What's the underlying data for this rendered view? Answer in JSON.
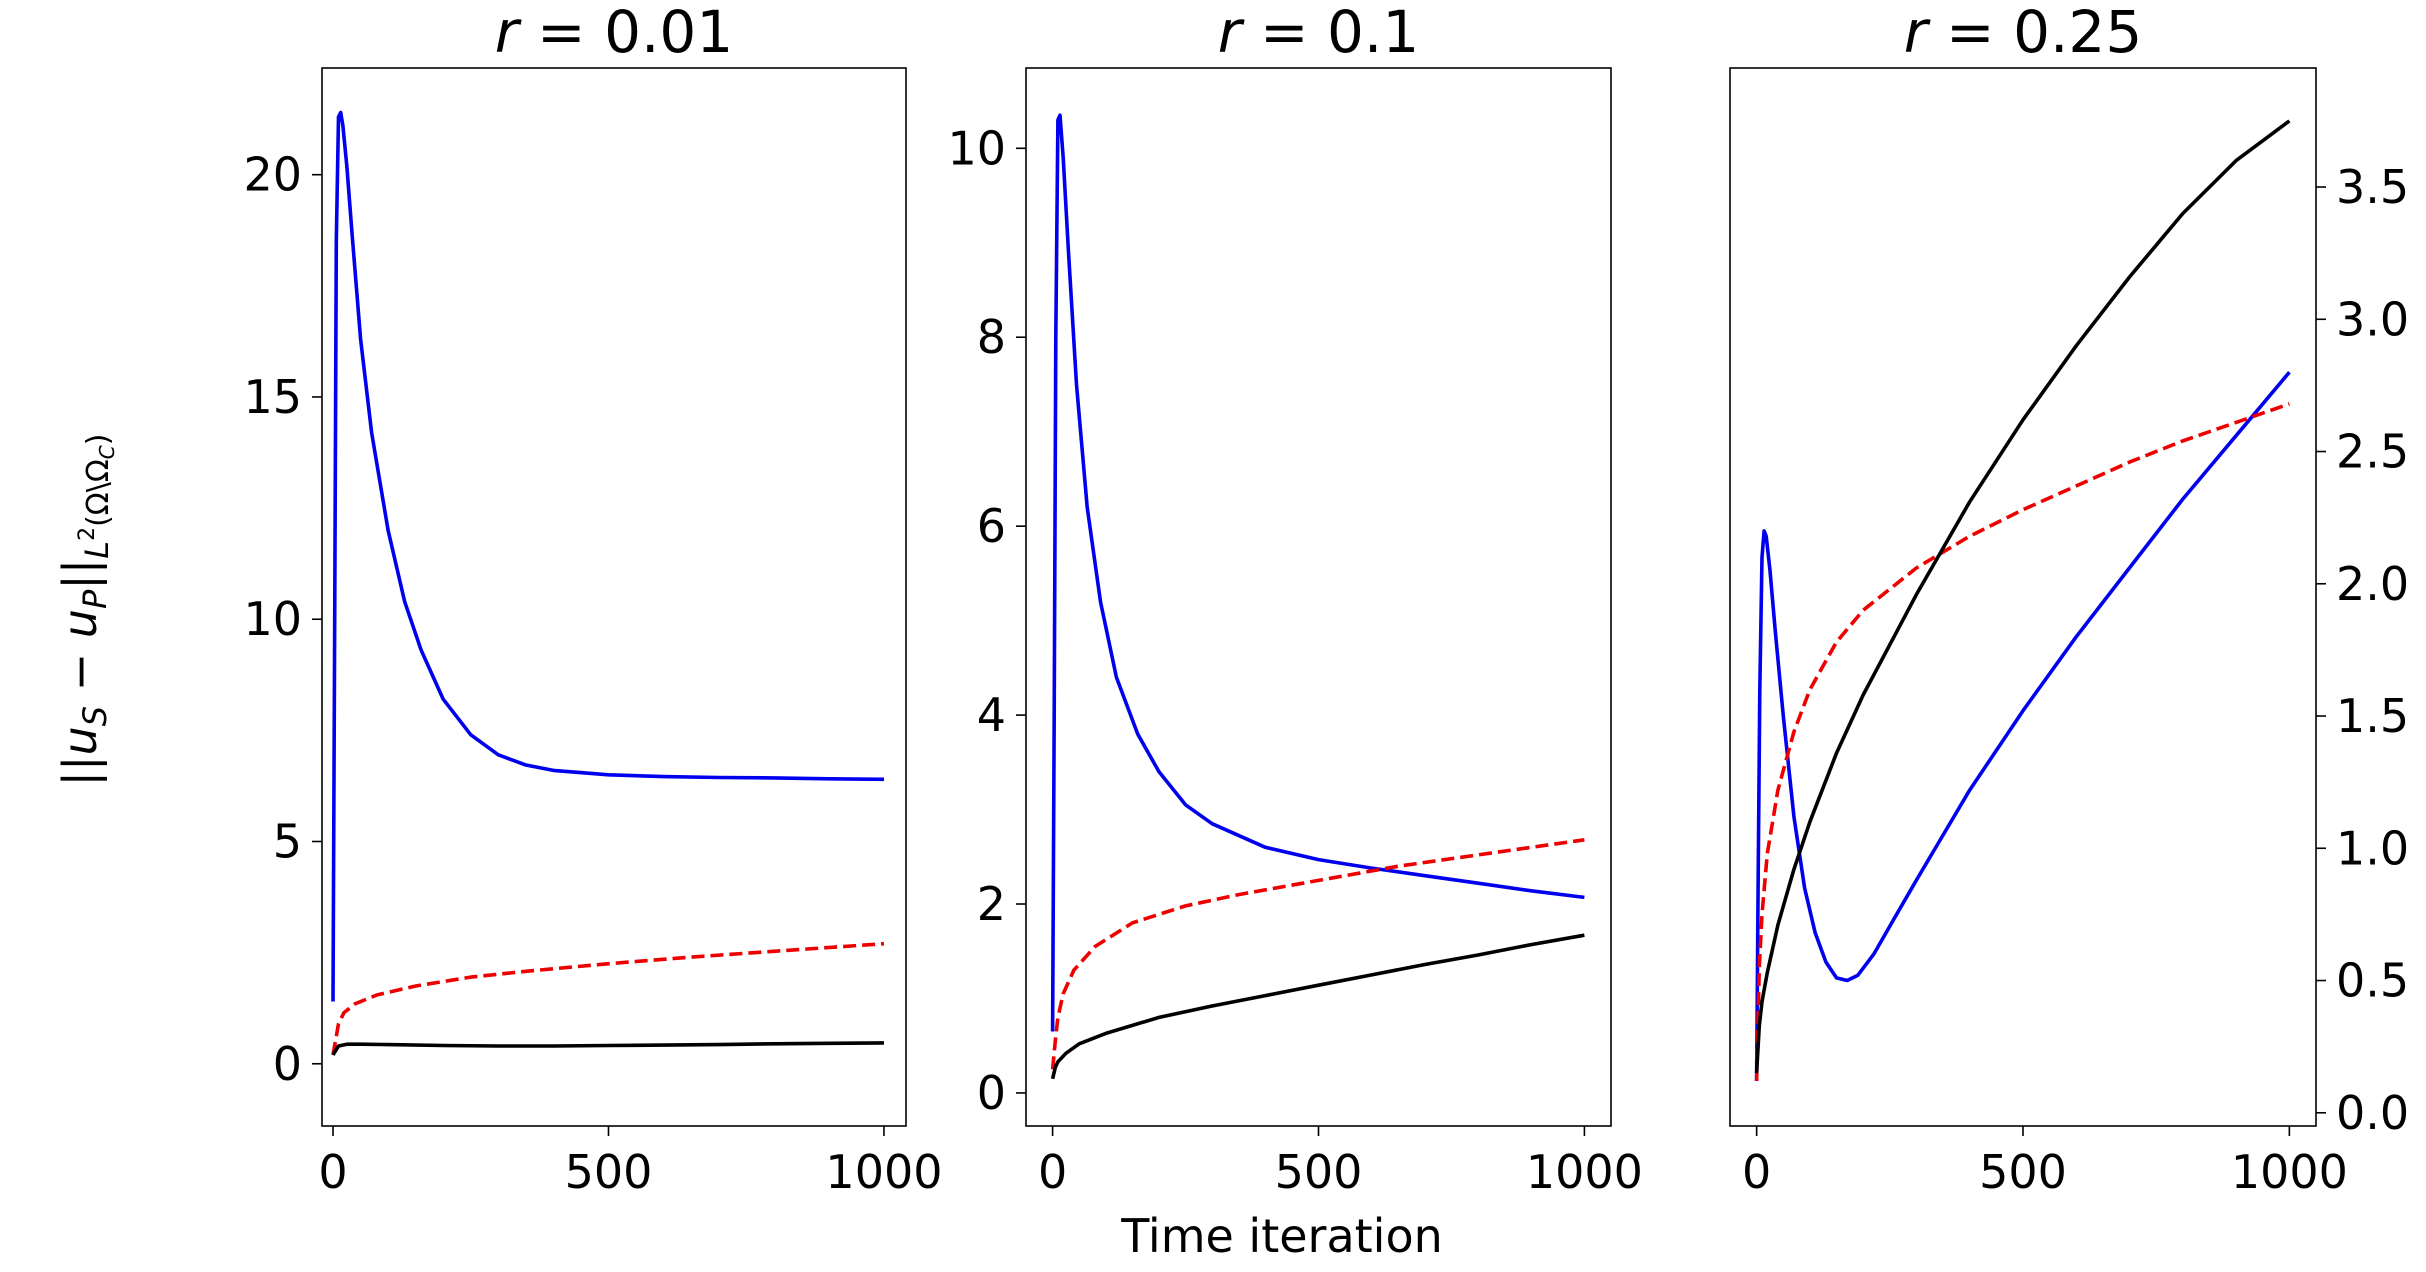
{
  "figure": {
    "xlabel": "Time iteration",
    "ylabel_shared": "||u_S − u_P||_{L^2(Ω\\Ω_C)}",
    "ylabel_parts": {
      "open": "||",
      "u": "u",
      "sub_s": "S",
      "minus": " − ",
      "u2": "u",
      "sub_p": "P",
      "close": "||",
      "norm": "L",
      "sup": "2",
      "domain": "(Ω\\Ω",
      "domain_sub": "C",
      "domain_close": ")"
    }
  },
  "chart_data": [
    {
      "type": "line",
      "title": "r = 0.01",
      "title_parts": {
        "var": "r",
        "rest": " = 0.01"
      },
      "xlim": [
        -20,
        1040
      ],
      "ylim": [
        -1.4,
        22.4
      ],
      "xticks": [
        0,
        500,
        1000
      ],
      "yticks": [
        0,
        5,
        10,
        15,
        20
      ],
      "ytick_labels": [
        "0",
        "5",
        "10",
        "15",
        "20"
      ],
      "yaxis_side": "left",
      "series": [
        {
          "name": "blue",
          "color": "#0000ee",
          "style": "solid",
          "points": [
            [
              0,
              1.4
            ],
            [
              3,
              10
            ],
            [
              6,
              18.5
            ],
            [
              10,
              21.3
            ],
            [
              14,
              21.4
            ],
            [
              18,
              21.1
            ],
            [
              25,
              20.2
            ],
            [
              35,
              18.6
            ],
            [
              50,
              16.3
            ],
            [
              70,
              14.2
            ],
            [
              100,
              12.0
            ],
            [
              130,
              10.4
            ],
            [
              160,
              9.3
            ],
            [
              200,
              8.2
            ],
            [
              250,
              7.4
            ],
            [
              300,
              6.95
            ],
            [
              350,
              6.72
            ],
            [
              400,
              6.6
            ],
            [
              500,
              6.5
            ],
            [
              600,
              6.46
            ],
            [
              700,
              6.44
            ],
            [
              800,
              6.43
            ],
            [
              900,
              6.41
            ],
            [
              1000,
              6.4
            ]
          ]
        },
        {
          "name": "red",
          "color": "#ee0000",
          "style": "dashed",
          "points": [
            [
              0,
              0.2
            ],
            [
              5,
              0.55
            ],
            [
              10,
              0.9
            ],
            [
              20,
              1.15
            ],
            [
              40,
              1.35
            ],
            [
              80,
              1.55
            ],
            [
              150,
              1.75
            ],
            [
              250,
              1.95
            ],
            [
              350,
              2.08
            ],
            [
              500,
              2.25
            ],
            [
              650,
              2.4
            ],
            [
              800,
              2.53
            ],
            [
              1000,
              2.7
            ]
          ]
        },
        {
          "name": "black",
          "color": "#000000",
          "style": "solid",
          "points": [
            [
              0,
              0.2
            ],
            [
              10,
              0.4
            ],
            [
              25,
              0.44
            ],
            [
              50,
              0.44
            ],
            [
              100,
              0.43
            ],
            [
              200,
              0.41
            ],
            [
              300,
              0.4
            ],
            [
              400,
              0.4
            ],
            [
              500,
              0.41
            ],
            [
              600,
              0.42
            ],
            [
              700,
              0.43
            ],
            [
              800,
              0.45
            ],
            [
              900,
              0.46
            ],
            [
              1000,
              0.47
            ]
          ]
        }
      ]
    },
    {
      "type": "line",
      "title": "r = 0.1",
      "title_parts": {
        "var": "r",
        "rest": " = 0.1"
      },
      "xlim": [
        -50,
        1050
      ],
      "ylim": [
        -0.35,
        10.85
      ],
      "xticks": [
        0,
        500,
        1000
      ],
      "yticks": [
        0,
        2,
        4,
        6,
        8,
        10
      ],
      "ytick_labels": [
        "0",
        "2",
        "4",
        "6",
        "8",
        "10"
      ],
      "yaxis_side": "left",
      "series": [
        {
          "name": "blue",
          "color": "#0000ee",
          "style": "solid",
          "points": [
            [
              0,
              0.65
            ],
            [
              3,
              4
            ],
            [
              6,
              8
            ],
            [
              10,
              10.3
            ],
            [
              14,
              10.35
            ],
            [
              20,
              9.9
            ],
            [
              30,
              8.9
            ],
            [
              45,
              7.5
            ],
            [
              65,
              6.2
            ],
            [
              90,
              5.2
            ],
            [
              120,
              4.4
            ],
            [
              160,
              3.8
            ],
            [
              200,
              3.4
            ],
            [
              250,
              3.05
            ],
            [
              300,
              2.85
            ],
            [
              400,
              2.6
            ],
            [
              500,
              2.47
            ],
            [
              600,
              2.38
            ],
            [
              700,
              2.3
            ],
            [
              800,
              2.22
            ],
            [
              900,
              2.14
            ],
            [
              1000,
              2.07
            ]
          ]
        },
        {
          "name": "red",
          "color": "#ee0000",
          "style": "dashed",
          "points": [
            [
              0,
              0.25
            ],
            [
              5,
              0.55
            ],
            [
              10,
              0.8
            ],
            [
              20,
              1.05
            ],
            [
              40,
              1.3
            ],
            [
              80,
              1.55
            ],
            [
              150,
              1.8
            ],
            [
              250,
              1.98
            ],
            [
              350,
              2.1
            ],
            [
              500,
              2.25
            ],
            [
              650,
              2.4
            ],
            [
              800,
              2.52
            ],
            [
              1000,
              2.68
            ]
          ]
        },
        {
          "name": "black",
          "color": "#000000",
          "style": "solid",
          "points": [
            [
              0,
              0.15
            ],
            [
              5,
              0.27
            ],
            [
              10,
              0.33
            ],
            [
              25,
              0.42
            ],
            [
              50,
              0.52
            ],
            [
              100,
              0.63
            ],
            [
              200,
              0.8
            ],
            [
              300,
              0.92
            ],
            [
              400,
              1.03
            ],
            [
              500,
              1.14
            ],
            [
              600,
              1.25
            ],
            [
              700,
              1.36
            ],
            [
              800,
              1.46
            ],
            [
              900,
              1.57
            ],
            [
              1000,
              1.67
            ]
          ]
        }
      ]
    },
    {
      "type": "line",
      "title": "r = 0.25",
      "title_parts": {
        "var": "r",
        "rest": " = 0.25"
      },
      "xlim": [
        -50,
        1050
      ],
      "ylim": [
        -0.05,
        3.95
      ],
      "xticks": [
        0,
        500,
        1000
      ],
      "yticks": [
        0.0,
        0.5,
        1.0,
        1.5,
        2.0,
        2.5,
        3.0,
        3.5
      ],
      "ytick_labels": [
        "0.0",
        "0.5",
        "1.0",
        "1.5",
        "2.0",
        "2.5",
        "3.0",
        "3.5"
      ],
      "yaxis_side": "right",
      "series": [
        {
          "name": "blue",
          "color": "#0000ee",
          "style": "solid",
          "points": [
            [
              0,
              0.12
            ],
            [
              3,
              0.9
            ],
            [
              6,
              1.6
            ],
            [
              10,
              2.1
            ],
            [
              14,
              2.2
            ],
            [
              18,
              2.18
            ],
            [
              25,
              2.05
            ],
            [
              35,
              1.82
            ],
            [
              50,
              1.5
            ],
            [
              70,
              1.12
            ],
            [
              90,
              0.85
            ],
            [
              110,
              0.68
            ],
            [
              130,
              0.57
            ],
            [
              150,
              0.51
            ],
            [
              170,
              0.5
            ],
            [
              190,
              0.52
            ],
            [
              220,
              0.6
            ],
            [
              260,
              0.74
            ],
            [
              300,
              0.88
            ],
            [
              350,
              1.05
            ],
            [
              400,
              1.22
            ],
            [
              500,
              1.52
            ],
            [
              600,
              1.8
            ],
            [
              700,
              2.06
            ],
            [
              800,
              2.32
            ],
            [
              900,
              2.56
            ],
            [
              1000,
              2.8
            ]
          ]
        },
        {
          "name": "red",
          "color": "#ee0000",
          "style": "dashed",
          "points": [
            [
              0,
              0.12
            ],
            [
              5,
              0.55
            ],
            [
              10,
              0.75
            ],
            [
              20,
              0.98
            ],
            [
              40,
              1.22
            ],
            [
              70,
              1.44
            ],
            [
              100,
              1.6
            ],
            [
              150,
              1.78
            ],
            [
              200,
              1.9
            ],
            [
              300,
              2.06
            ],
            [
              400,
              2.18
            ],
            [
              500,
              2.28
            ],
            [
              600,
              2.37
            ],
            [
              700,
              2.46
            ],
            [
              800,
              2.54
            ],
            [
              900,
              2.61
            ],
            [
              1000,
              2.68
            ]
          ]
        },
        {
          "name": "black",
          "color": "#000000",
          "style": "solid",
          "points": [
            [
              0,
              0.15
            ],
            [
              5,
              0.33
            ],
            [
              10,
              0.42
            ],
            [
              20,
              0.53
            ],
            [
              40,
              0.71
            ],
            [
              70,
              0.92
            ],
            [
              100,
              1.1
            ],
            [
              150,
              1.36
            ],
            [
              200,
              1.58
            ],
            [
              300,
              1.96
            ],
            [
              400,
              2.31
            ],
            [
              500,
              2.62
            ],
            [
              600,
              2.9
            ],
            [
              700,
              3.16
            ],
            [
              800,
              3.4
            ],
            [
              900,
              3.6
            ],
            [
              1000,
              3.75
            ]
          ]
        }
      ]
    }
  ]
}
